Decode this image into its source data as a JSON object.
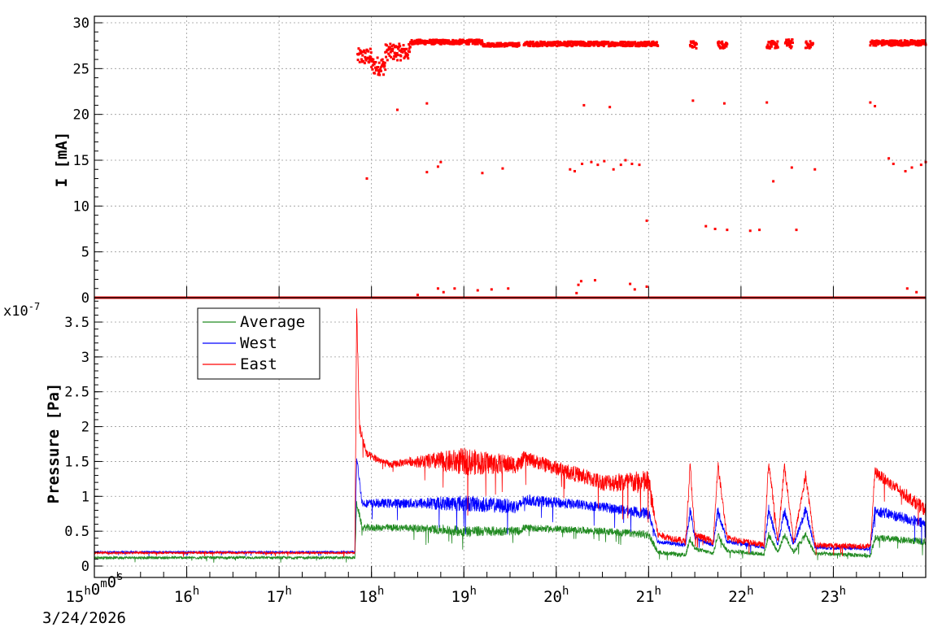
{
  "chart_data": [
    {
      "type": "scatter",
      "ylabel": "I [mA]",
      "ylim": [
        0,
        30
      ],
      "yticks": [
        "0",
        "5",
        "10",
        "15",
        "20",
        "25",
        "30"
      ],
      "xlim_hours": [
        15,
        24
      ],
      "series": [
        {
          "color": "#ff0000",
          "segments": [
            {
              "from": 17.85,
              "to": 18.0,
              "mean": 26.3,
              "jitter": 0.9
            },
            {
              "from": 18.0,
              "to": 18.15,
              "mean": 25.3,
              "jitter": 1.0
            },
            {
              "from": 18.15,
              "to": 18.42,
              "mean": 26.8,
              "jitter": 0.9
            },
            {
              "from": 18.42,
              "to": 19.2,
              "mean": 27.9,
              "jitter": 0.25
            },
            {
              "from": 19.2,
              "to": 19.6,
              "mean": 27.6,
              "jitter": 0.2
            },
            {
              "from": 19.65,
              "to": 21.1,
              "mean": 27.7,
              "jitter": 0.25
            },
            {
              "from": 21.45,
              "to": 21.52,
              "mean": 27.6,
              "jitter": 0.4
            },
            {
              "from": 21.75,
              "to": 21.85,
              "mean": 27.6,
              "jitter": 0.4
            },
            {
              "from": 22.28,
              "to": 22.4,
              "mean": 27.6,
              "jitter": 0.4
            },
            {
              "from": 22.48,
              "to": 22.56,
              "mean": 27.7,
              "jitter": 0.5
            },
            {
              "from": 22.7,
              "to": 22.78,
              "mean": 27.6,
              "jitter": 0.4
            },
            {
              "from": 23.4,
              "to": 24.0,
              "mean": 27.8,
              "jitter": 0.3
            }
          ],
          "points": [
            [
              17.95,
              13.0
            ],
            [
              18.28,
              20.5
            ],
            [
              18.6,
              21.2
            ],
            [
              18.6,
              13.7
            ],
            [
              18.72,
              14.3
            ],
            [
              18.75,
              14.8
            ],
            [
              19.2,
              13.6
            ],
            [
              19.42,
              14.1
            ],
            [
              20.15,
              14.0
            ],
            [
              20.2,
              13.8
            ],
            [
              20.28,
              14.6
            ],
            [
              20.3,
              21.0
            ],
            [
              20.38,
              14.8
            ],
            [
              20.45,
              14.5
            ],
            [
              20.52,
              14.9
            ],
            [
              20.58,
              20.8
            ],
            [
              20.62,
              14.0
            ],
            [
              20.7,
              14.5
            ],
            [
              20.75,
              15.0
            ],
            [
              20.82,
              14.6
            ],
            [
              20.9,
              14.5
            ],
            [
              20.98,
              8.4
            ],
            [
              21.48,
              21.5
            ],
            [
              21.62,
              7.8
            ],
            [
              21.72,
              7.5
            ],
            [
              21.82,
              21.2
            ],
            [
              21.85,
              7.4
            ],
            [
              22.1,
              7.3
            ],
            [
              22.2,
              7.4
            ],
            [
              22.28,
              21.3
            ],
            [
              22.35,
              12.7
            ],
            [
              22.55,
              14.2
            ],
            [
              22.6,
              7.4
            ],
            [
              22.8,
              14.0
            ],
            [
              23.4,
              21.3
            ],
            [
              23.45,
              20.9
            ],
            [
              23.6,
              15.2
            ],
            [
              23.65,
              14.6
            ],
            [
              23.78,
              13.8
            ],
            [
              23.85,
              14.2
            ],
            [
              23.95,
              14.5
            ],
            [
              24.0,
              14.8
            ],
            [
              18.5,
              0.3
            ],
            [
              18.72,
              1.0
            ],
            [
              18.78,
              0.6
            ],
            [
              18.9,
              1.0
            ],
            [
              19.15,
              0.8
            ],
            [
              19.3,
              0.9
            ],
            [
              19.48,
              1.0
            ],
            [
              20.22,
              0.5
            ],
            [
              20.24,
              1.4
            ],
            [
              20.27,
              1.8
            ],
            [
              20.42,
              1.9
            ],
            [
              20.8,
              1.5
            ],
            [
              20.85,
              0.9
            ],
            [
              20.98,
              1.2
            ],
            [
              23.8,
              1.0
            ],
            [
              23.9,
              0.6
            ]
          ],
          "baseline": {
            "value": 0,
            "from": 15,
            "to": 24
          }
        }
      ]
    },
    {
      "type": "line",
      "ylabel": "Pressure [Pa]",
      "exponent_label": "x10",
      "exponent": "-7",
      "ylim": [
        0,
        3.85
      ],
      "yticks": [
        "0",
        "0.5",
        "1",
        "1.5",
        "2",
        "2.5",
        "3",
        "3.5"
      ],
      "x_ticks": [
        {
          "hour": 15,
          "label": "15",
          "sup": "h",
          "label2": "0",
          "sup2": "m",
          "label3": "0",
          "sup3": "s"
        },
        {
          "hour": 16,
          "label": "16",
          "sup": "h"
        },
        {
          "hour": 17,
          "label": "17",
          "sup": "h"
        },
        {
          "hour": 18,
          "label": "18",
          "sup": "h"
        },
        {
          "hour": 19,
          "label": "19",
          "sup": "h"
        },
        {
          "hour": 20,
          "label": "20",
          "sup": "h"
        },
        {
          "hour": 21,
          "label": "21",
          "sup": "h"
        },
        {
          "hour": 22,
          "label": "22",
          "sup": "h"
        },
        {
          "hour": 23,
          "label": "23",
          "sup": "h"
        }
      ],
      "date_label": "3/24/2026",
      "legend": {
        "placement": "top-left",
        "entries": [
          "Average",
          "West",
          "East"
        ]
      },
      "series": [
        {
          "name": "Average",
          "color": "#228b22",
          "profile": [
            [
              15.0,
              0.12,
              0.02
            ],
            [
              17.82,
              0.12,
              0.02
            ],
            [
              17.84,
              0.9,
              0.05
            ],
            [
              17.9,
              0.55,
              0.05
            ],
            [
              18.4,
              0.55,
              0.05
            ],
            [
              19.0,
              0.5,
              0.08
            ],
            [
              19.6,
              0.5,
              0.06
            ],
            [
              19.65,
              0.55,
              0.05
            ],
            [
              20.5,
              0.5,
              0.05
            ],
            [
              21.0,
              0.45,
              0.06
            ],
            [
              21.1,
              0.2,
              0.03
            ],
            [
              21.4,
              0.15,
              0.03
            ],
            [
              21.45,
              0.4,
              0.05
            ],
            [
              21.5,
              0.25,
              0.03
            ],
            [
              21.7,
              0.18,
              0.03
            ],
            [
              21.75,
              0.45,
              0.05
            ],
            [
              21.85,
              0.22,
              0.03
            ],
            [
              22.25,
              0.17,
              0.03
            ],
            [
              22.3,
              0.45,
              0.05
            ],
            [
              22.4,
              0.2,
              0.03
            ],
            [
              22.47,
              0.45,
              0.05
            ],
            [
              22.57,
              0.2,
              0.03
            ],
            [
              22.7,
              0.45,
              0.05
            ],
            [
              22.8,
              0.18,
              0.03
            ],
            [
              23.4,
              0.15,
              0.03
            ],
            [
              23.45,
              0.4,
              0.05
            ],
            [
              24.0,
              0.35,
              0.05
            ]
          ]
        },
        {
          "name": "West",
          "color": "#0000ff",
          "profile": [
            [
              15.0,
              0.2,
              0.015
            ],
            [
              17.82,
              0.2,
              0.015
            ],
            [
              17.84,
              1.55,
              0.05
            ],
            [
              17.9,
              0.9,
              0.06
            ],
            [
              18.4,
              0.9,
              0.07
            ],
            [
              19.0,
              0.9,
              0.12
            ],
            [
              19.6,
              0.85,
              0.1
            ],
            [
              19.65,
              0.95,
              0.08
            ],
            [
              20.5,
              0.85,
              0.07
            ],
            [
              21.0,
              0.75,
              0.08
            ],
            [
              21.1,
              0.35,
              0.03
            ],
            [
              21.4,
              0.3,
              0.03
            ],
            [
              21.45,
              0.8,
              0.08
            ],
            [
              21.5,
              0.4,
              0.03
            ],
            [
              21.7,
              0.3,
              0.03
            ],
            [
              21.75,
              0.8,
              0.08
            ],
            [
              21.85,
              0.35,
              0.03
            ],
            [
              22.25,
              0.27,
              0.03
            ],
            [
              22.3,
              0.8,
              0.08
            ],
            [
              22.4,
              0.3,
              0.03
            ],
            [
              22.47,
              0.8,
              0.08
            ],
            [
              22.57,
              0.3,
              0.03
            ],
            [
              22.7,
              0.8,
              0.08
            ],
            [
              22.8,
              0.27,
              0.03
            ],
            [
              23.4,
              0.25,
              0.03
            ],
            [
              23.45,
              0.8,
              0.08
            ],
            [
              24.0,
              0.6,
              0.08
            ]
          ]
        },
        {
          "name": "East",
          "color": "#ff0000",
          "profile": [
            [
              15.0,
              0.19,
              0.015
            ],
            [
              17.82,
              0.19,
              0.015
            ],
            [
              17.84,
              3.7,
              0.05
            ],
            [
              17.87,
              2.0,
              0.1
            ],
            [
              17.95,
              1.6,
              0.06
            ],
            [
              18.2,
              1.45,
              0.05
            ],
            [
              18.4,
              1.5,
              0.06
            ],
            [
              19.0,
              1.5,
              0.2
            ],
            [
              19.6,
              1.45,
              0.12
            ],
            [
              19.65,
              1.55,
              0.1
            ],
            [
              20.5,
              1.2,
              0.12
            ],
            [
              21.0,
              1.2,
              0.18
            ],
            [
              21.1,
              0.45,
              0.05
            ],
            [
              21.4,
              0.35,
              0.05
            ],
            [
              21.45,
              1.45,
              0.08
            ],
            [
              21.5,
              0.45,
              0.05
            ],
            [
              21.7,
              0.35,
              0.05
            ],
            [
              21.75,
              1.45,
              0.08
            ],
            [
              21.85,
              0.4,
              0.05
            ],
            [
              22.25,
              0.3,
              0.04
            ],
            [
              22.3,
              1.5,
              0.08
            ],
            [
              22.4,
              0.35,
              0.04
            ],
            [
              22.47,
              1.45,
              0.08
            ],
            [
              22.57,
              0.35,
              0.04
            ],
            [
              22.7,
              1.3,
              0.08
            ],
            [
              22.8,
              0.3,
              0.04
            ],
            [
              23.4,
              0.28,
              0.04
            ],
            [
              23.45,
              1.35,
              0.08
            ],
            [
              24.0,
              0.8,
              0.1
            ]
          ]
        }
      ]
    }
  ]
}
